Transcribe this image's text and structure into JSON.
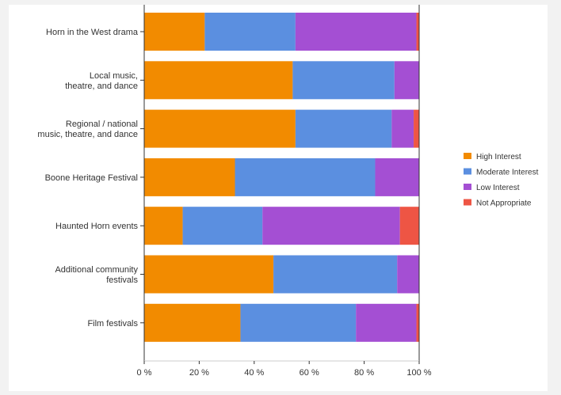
{
  "colors": {
    "high": "#f28b00",
    "moderate": "#5b8fe0",
    "low": "#a44fd3",
    "not_appropriate": "#ee5544",
    "axis": "#333333",
    "background": "#ffffff"
  },
  "chart_data": {
    "type": "bar",
    "orientation": "horizontal",
    "stacked": true,
    "title": "",
    "xlabel": "",
    "ylabel": "",
    "xlim": [
      0,
      100
    ],
    "x_ticks": [
      "0 %",
      "20 %",
      "40 %",
      "60 %",
      "80 %",
      "100 %"
    ],
    "grid": false,
    "legend_position": "right",
    "categories": [
      [
        "Horn in the West drama"
      ],
      [
        "Local music,",
        "theatre, and dance"
      ],
      [
        "Regional / national",
        "music, theatre, and dance"
      ],
      [
        "Boone Heritage Festival"
      ],
      [
        "Haunted Horn events"
      ],
      [
        "Additional community",
        "festivals"
      ],
      [
        "Film festivals"
      ]
    ],
    "series": [
      {
        "name": "High Interest",
        "color_key": "high",
        "values": [
          22,
          54,
          55,
          33,
          14,
          47,
          35
        ]
      },
      {
        "name": "Moderate Interest",
        "color_key": "moderate",
        "values": [
          33,
          37,
          35,
          51,
          29,
          45,
          42
        ]
      },
      {
        "name": "Low Interest",
        "color_key": "low",
        "values": [
          44,
          9,
          8,
          16,
          50,
          8,
          22
        ]
      },
      {
        "name": "Not Appropriate",
        "color_key": "not_appropriate",
        "values": [
          1,
          0,
          2,
          0,
          7,
          0,
          1
        ]
      }
    ]
  }
}
